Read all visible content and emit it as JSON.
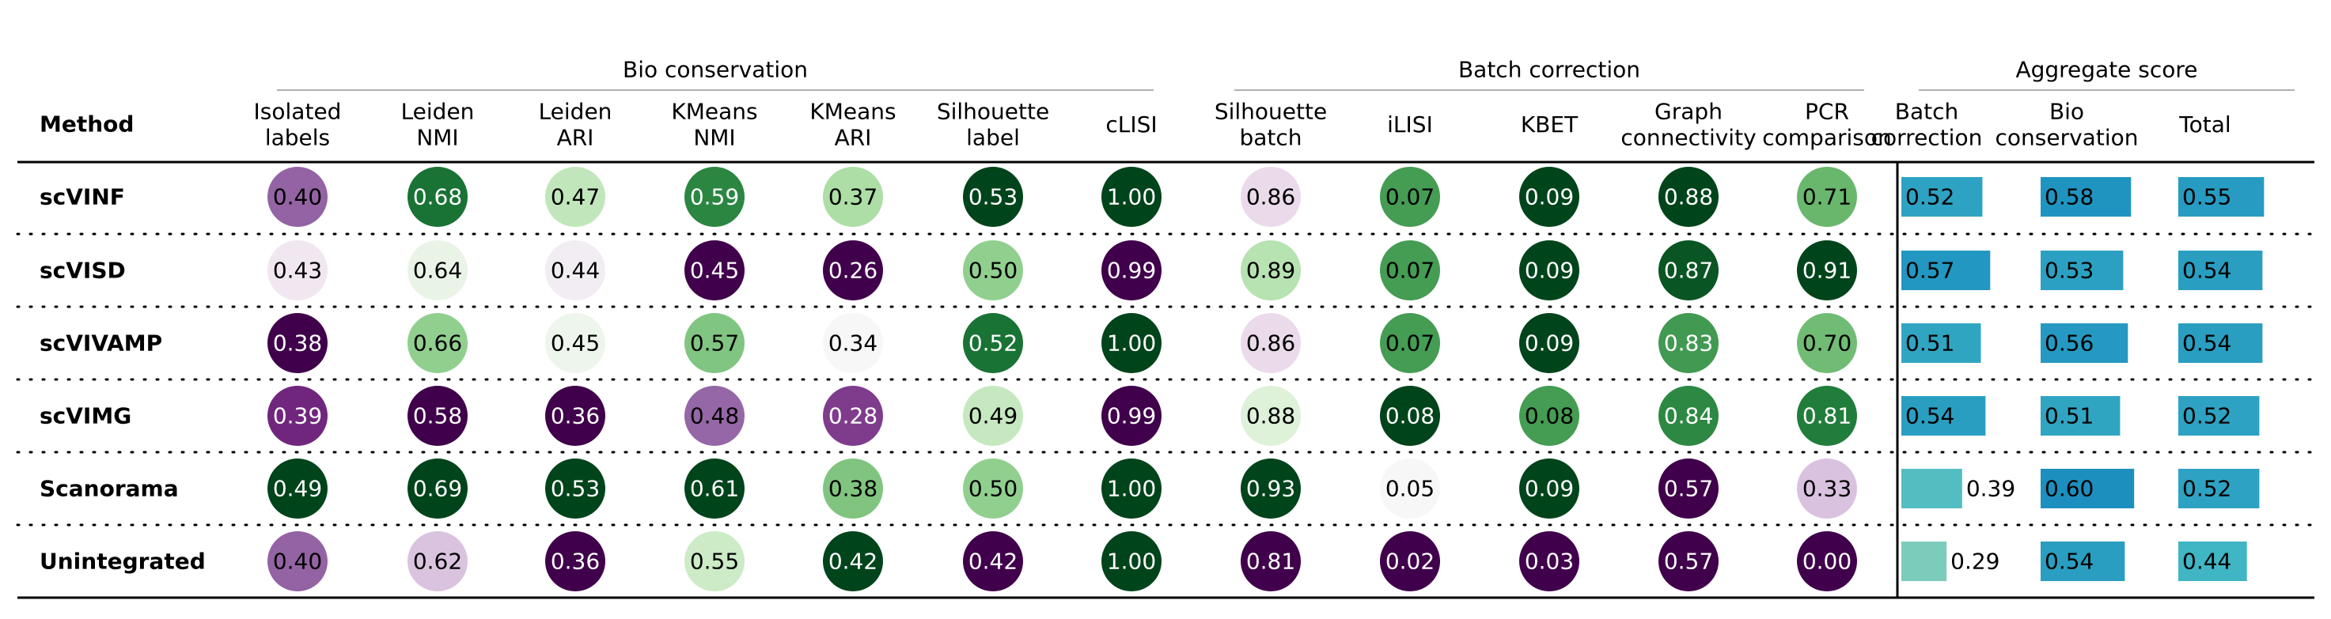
{
  "chart_data": {
    "type": "table",
    "method_header": "Method",
    "groups": [
      {
        "label": "Bio conservation",
        "columns": [
          0,
          1,
          2,
          3,
          4,
          5,
          6
        ]
      },
      {
        "label": "Batch correction",
        "columns": [
          7,
          8,
          9,
          10,
          11
        ]
      },
      {
        "label": "Aggregate score",
        "columns": [
          12,
          13,
          14
        ]
      }
    ],
    "columns": [
      {
        "key": "isolated_labels",
        "label": [
          "Isolated",
          "labels"
        ],
        "kind": "circle"
      },
      {
        "key": "leiden_nmi",
        "label": [
          "Leiden",
          "NMI"
        ],
        "kind": "circle"
      },
      {
        "key": "leiden_ari",
        "label": [
          "Leiden",
          "ARI"
        ],
        "kind": "circle"
      },
      {
        "key": "kmeans_nmi",
        "label": [
          "KMeans",
          "NMI"
        ],
        "kind": "circle"
      },
      {
        "key": "kmeans_ari",
        "label": [
          "KMeans",
          "ARI"
        ],
        "kind": "circle"
      },
      {
        "key": "silhouette_label",
        "label": [
          "Silhouette",
          "label"
        ],
        "kind": "circle"
      },
      {
        "key": "clisi",
        "label": [
          "cLISI"
        ],
        "kind": "circle"
      },
      {
        "key": "silhouette_batch",
        "label": [
          "Silhouette",
          "batch"
        ],
        "kind": "circle"
      },
      {
        "key": "ilisi",
        "label": [
          "iLISI"
        ],
        "kind": "circle"
      },
      {
        "key": "kbet",
        "label": [
          "KBET"
        ],
        "kind": "circle"
      },
      {
        "key": "graph_connectivity",
        "label": [
          "Graph",
          "connectivity"
        ],
        "kind": "circle"
      },
      {
        "key": "pcr_comparison",
        "label": [
          "PCR",
          "comparison"
        ],
        "kind": "circle"
      },
      {
        "key": "batch_correction",
        "label": [
          "Batch",
          "correction"
        ],
        "kind": "bar"
      },
      {
        "key": "bio_conservation",
        "label": [
          "Bio",
          "conservation"
        ],
        "kind": "bar"
      },
      {
        "key": "total",
        "label": [
          "Total"
        ],
        "kind": "bar"
      }
    ],
    "rows": [
      {
        "method": "scVINF",
        "values": [
          0.4,
          0.68,
          0.47,
          0.59,
          0.37,
          0.53,
          1.0,
          0.86,
          0.07,
          0.09,
          0.88,
          0.71,
          0.52,
          0.58,
          0.55
        ]
      },
      {
        "method": "scVISD",
        "values": [
          0.43,
          0.64,
          0.44,
          0.45,
          0.26,
          0.5,
          0.99,
          0.89,
          0.07,
          0.09,
          0.87,
          0.91,
          0.57,
          0.53,
          0.54
        ]
      },
      {
        "method": "scVIVAMP",
        "values": [
          0.38,
          0.66,
          0.45,
          0.57,
          0.34,
          0.52,
          1.0,
          0.86,
          0.07,
          0.09,
          0.83,
          0.7,
          0.51,
          0.56,
          0.54
        ]
      },
      {
        "method": "scVIMG",
        "values": [
          0.39,
          0.58,
          0.36,
          0.48,
          0.28,
          0.49,
          0.99,
          0.88,
          0.08,
          0.08,
          0.84,
          0.81,
          0.54,
          0.51,
          0.52
        ]
      },
      {
        "method": "Scanorama",
        "values": [
          0.49,
          0.69,
          0.53,
          0.61,
          0.38,
          0.5,
          1.0,
          0.93,
          0.05,
          0.09,
          0.57,
          0.33,
          0.39,
          0.6,
          0.52
        ]
      },
      {
        "method": "Unintegrated",
        "values": [
          0.4,
          0.62,
          0.36,
          0.55,
          0.42,
          0.42,
          1.0,
          0.81,
          0.02,
          0.03,
          0.57,
          0.0,
          0.29,
          0.54,
          0.44
        ]
      }
    ]
  }
}
